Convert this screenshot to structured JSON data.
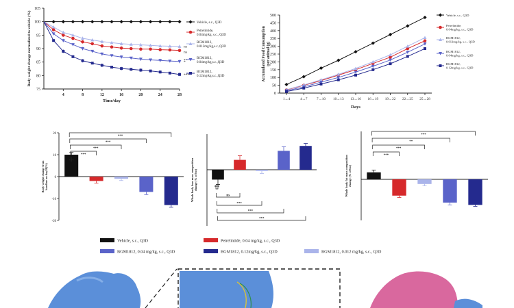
{
  "colors": {
    "vehicle": "#111111",
    "petrelintide": "#d6292b",
    "bgm_0012": "#aab4ea",
    "bgm_004": "#5a63c9",
    "bgm_012": "#242a8e",
    "protein_blue": "#5b8fd9",
    "protein_pink": "#d9689e"
  },
  "chart_data": [
    {
      "id": "body_weight",
      "type": "line",
      "title": "",
      "xlabel": "Time/day",
      "ylabel": "Body weight change normalized to vehicle (%)",
      "xlim": [
        0,
        28
      ],
      "ylim": [
        75,
        105
      ],
      "xticks": [
        "4",
        "8",
        "12",
        "16",
        "20",
        "24",
        "28"
      ],
      "yticks": [
        "75",
        "80",
        "85",
        "90",
        "95",
        "100",
        "105"
      ],
      "x": [
        0,
        2,
        4,
        6,
        8,
        10,
        12,
        14,
        16,
        18,
        20,
        22,
        24,
        26,
        28
      ],
      "series": [
        {
          "key": "vehicle",
          "name": "Vehicle, s.c., Q3D",
          "values": [
            100,
            100,
            100,
            100,
            100,
            100,
            100,
            100,
            100,
            100,
            100,
            100,
            100,
            100,
            100
          ]
        },
        {
          "key": "petrelintide",
          "name": "Petrelintide, 0.04mg/kg, s.c., Q3D",
          "values": [
            100,
            97,
            95,
            93.8,
            92.5,
            91.8,
            91,
            90.6,
            90.2,
            90,
            89.8,
            89.8,
            89.6,
            89.5,
            89.3
          ]
        },
        {
          "key": "bgm_0012",
          "name": "BGM1812, 0.012mg/kg,s.c.,Q3D",
          "values": [
            100,
            98,
            96,
            95,
            93.8,
            93.2,
            92.6,
            92.2,
            91.8,
            91.6,
            91.4,
            91.2,
            91,
            90.9,
            90.8
          ]
        },
        {
          "key": "bgm_004",
          "name": "BGM1812, 0.04mg/kg,s.c.,Q3D",
          "values": [
            100,
            95.5,
            93,
            91.5,
            90,
            89,
            88,
            87.4,
            86.9,
            86.5,
            86.1,
            85.8,
            85.6,
            85.4,
            85.2
          ]
        },
        {
          "key": "bgm_012",
          "name": "BGM1812, 0.12mg/kg,s.c.,Q3D",
          "values": [
            100,
            93,
            89,
            87,
            85.5,
            84.6,
            83.8,
            83.1,
            82.6,
            82.3,
            82,
            81.7,
            81.3,
            80.9,
            80.4
          ]
        }
      ],
      "annotations": [
        "ns",
        "ns",
        "*",
        "**",
        "***"
      ]
    },
    {
      "id": "food_consumption",
      "type": "line",
      "title": "",
      "xlabel": "Days",
      "ylabel": "Accumulated Food Consumption /per animal (g)",
      "ylim": [
        0,
        500
      ],
      "categories": [
        "1→4",
        "4→7",
        "7→10",
        "10→13",
        "13→16",
        "16→19",
        "19→22",
        "22→25",
        "25→28"
      ],
      "yticks": [
        "0",
        "50",
        "100",
        "150",
        "200",
        "250",
        "300",
        "350",
        "400",
        "450",
        "500"
      ],
      "series": [
        {
          "key": "vehicle",
          "name": "Vehicle, s.c., Q3D",
          "values": [
            55,
            105,
            160,
            210,
            265,
            320,
            375,
            430,
            485
          ]
        },
        {
          "key": "petrelintide",
          "name": "Petrelintide, 0.04mg/kg, s.c., Q3D",
          "values": [
            20,
            50,
            80,
            115,
            150,
            190,
            230,
            285,
            335
          ]
        },
        {
          "key": "bgm_0012",
          "name": "BGM1812, 0.012mg/kg, s.c., Q3D",
          "values": [
            22,
            52,
            85,
            120,
            158,
            200,
            245,
            300,
            355
          ]
        },
        {
          "key": "bgm_004",
          "name": "BGM1812, 0.04mg/kg, s.c., Q3D",
          "values": [
            15,
            40,
            70,
            100,
            135,
            172,
            212,
            262,
            315
          ]
        },
        {
          "key": "bgm_012",
          "name": "BGM1812, 0.12mg/kg, s.c., Q3D",
          "values": [
            10,
            32,
            58,
            85,
            115,
            150,
            188,
            235,
            285
          ]
        }
      ]
    },
    {
      "id": "bw_change_bar",
      "type": "bar",
      "ylabel": "Body weight change from baseline on day28(%)",
      "ylim": [
        -20,
        20
      ],
      "yticks": [
        "20",
        "10",
        "0",
        "-10",
        "-20"
      ],
      "series": [
        {
          "key": "vehicle",
          "value": 10,
          "error": 1
        },
        {
          "key": "petrelintide",
          "value": -2,
          "error": 1
        },
        {
          "key": "bgm_0012",
          "value": -1,
          "error": 0.8
        },
        {
          "key": "bgm_004",
          "value": -7,
          "error": 1.2
        },
        {
          "key": "bgm_012",
          "value": -13,
          "error": 1
        }
      ],
      "significance": [
        "***",
        "***",
        "***",
        "***",
        "***"
      ]
    },
    {
      "id": "lean_mass_bar",
      "type": "bar",
      "ylabel": "Whole body lean mass composition change (% of bw)",
      "ylim": [
        -3,
        4
      ],
      "series": [
        {
          "key": "vehicle",
          "value": -1.2,
          "error": 0.6
        },
        {
          "key": "petrelintide",
          "value": 1.2,
          "error": 0.5
        },
        {
          "key": "bgm_0012",
          "value": -0.15,
          "error": 0.3
        },
        {
          "key": "bgm_004",
          "value": 2.3,
          "error": 0.5
        },
        {
          "key": "bgm_012",
          "value": 2.9,
          "error": 0.3
        }
      ],
      "significance": [
        "***",
        "ns",
        "***",
        "***",
        "***"
      ]
    },
    {
      "id": "fat_mass_bar",
      "type": "bar",
      "ylabel": "Whole body fat mass composition change (% of bw)",
      "ylim": [
        -5,
        5
      ],
      "series": [
        {
          "key": "vehicle",
          "value": 1.5,
          "error": 0.5
        },
        {
          "key": "petrelintide",
          "value": -3.5,
          "error": 0.4
        },
        {
          "key": "bgm_0012",
          "value": -1,
          "error": 0.4
        },
        {
          "key": "bgm_004",
          "value": -5,
          "error": 0.5
        },
        {
          "key": "bgm_012",
          "value": -5.5,
          "error": 0.3
        }
      ],
      "significance": [
        "***",
        "**",
        "***",
        "***"
      ]
    }
  ],
  "bottom_legend": [
    {
      "key": "vehicle",
      "label": "Vehicle, s.c., Q3D"
    },
    {
      "key": "petrelintide",
      "label": "Petrelintide, 0.04 mg/kg, s.c., Q3D"
    },
    {
      "key": "bgm_004",
      "label": "BGM1812, 0.04 mg/kg, s.c., Q3D"
    },
    {
      "key": "bgm_012",
      "label": "BGM1812, 0.12mg/kg, s.c., Q3D"
    },
    {
      "key": "bgm_0012",
      "label": "BGM1812, 0.012 mg/kg, s.c., Q3D"
    }
  ]
}
